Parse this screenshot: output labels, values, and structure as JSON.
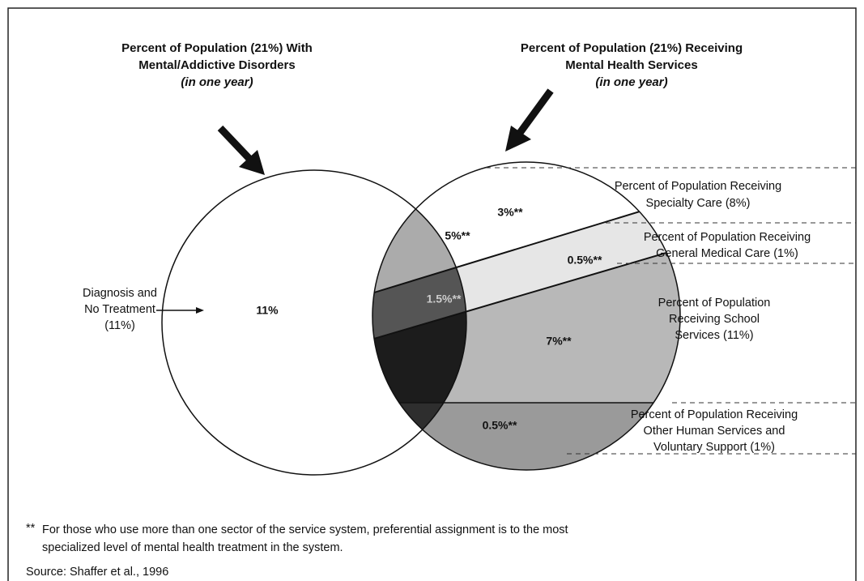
{
  "left_title": [
    "Percent of Population (21%) With",
    "Mental/Addictive Disorders",
    "(in one year)"
  ],
  "right_title": [
    "Percent of Population (21%) Receiving",
    "Mental Health Services",
    "(in one year)"
  ],
  "left_label": [
    "Diagnosis and",
    "No Treatment",
    "(11%)"
  ],
  "regions": [
    {
      "label": "11%"
    },
    {
      "label": "5%**"
    },
    {
      "label": "3%**"
    },
    {
      "label": "1.5%**"
    },
    {
      "label": "0.5%**"
    },
    {
      "label": "7%**"
    },
    {
      "label": "0.5%**"
    }
  ],
  "side_labels": [
    [
      "Percent of Population Receiving",
      "Specialty Care (8%)"
    ],
    [
      "Percent of Population Receiving",
      "General Medical Care (1%)"
    ],
    [
      "Percent of Population",
      "Receiving School",
      "Services (11%)"
    ],
    [
      "Percent of Population Receiving",
      "Other Human Services and",
      "Voluntary Support (1%)"
    ]
  ],
  "footnote": {
    "marker": "**",
    "lines": [
      "For those who use more than one sector of the service system, preferential assignment is to the most",
      "specialized level of mental health treatment in the system."
    ]
  },
  "source": "Source:  Shaffer et al., 1996"
}
